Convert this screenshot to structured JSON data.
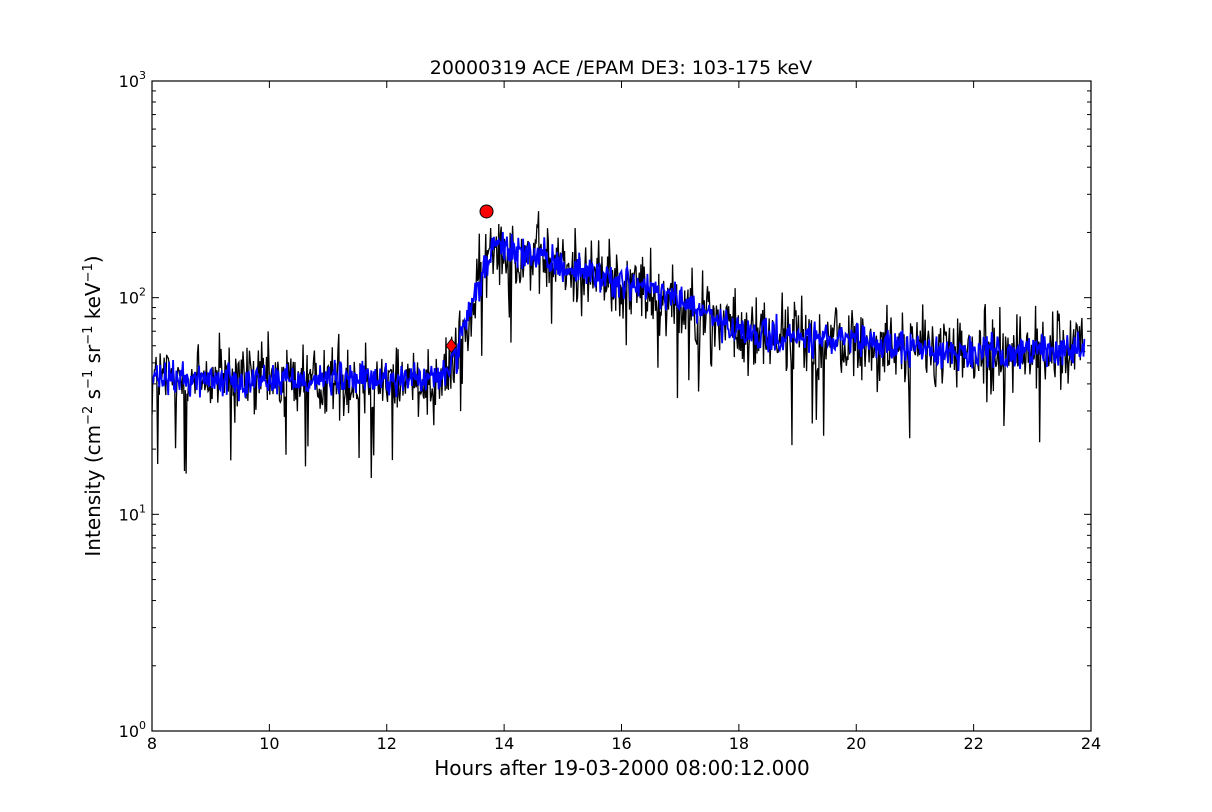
{
  "chart_data": {
    "type": "line",
    "title": "20000319 ACE /EPAM DE3: 103-175 keV",
    "xlabel": "Hours after 19-03-2000 08:00:12.000",
    "ylabel": {
      "text": "Intensity (cm",
      "parts": [
        "Intensity (cm",
        "−2",
        " s",
        "−1",
        " sr",
        "−1",
        " keV",
        "−1",
        ")"
      ]
    },
    "xlim": [
      8,
      24
    ],
    "ylim": [
      1,
      1000
    ],
    "yscale": "log",
    "x_ticks": [
      8,
      10,
      12,
      14,
      16,
      18,
      20,
      22,
      24
    ],
    "x_tick_labels": [
      "8",
      "10",
      "12",
      "14",
      "16",
      "18",
      "20",
      "22",
      "24"
    ],
    "y_tick_exponents": [
      "0",
      "1",
      "2",
      "3"
    ],
    "y_tick_base": "10",
    "grid": false,
    "series": [
      {
        "style": "raw",
        "color": "#000000",
        "x_range": [
          8.0,
          23.9
        ],
        "profile_x": [
          8.0,
          12.9,
          13.2,
          13.5,
          13.8,
          14.2,
          15.0,
          16.0,
          17.0,
          18.0,
          20.0,
          22.0,
          23.9
        ],
        "profile_y": [
          42,
          42,
          55,
          100,
          170,
          165,
          140,
          118,
          98,
          68,
          62,
          55,
          58
        ],
        "noise_level": 0.28
      },
      {
        "style": "smoothed",
        "color": "#0000ff",
        "x_range": [
          8.0,
          23.9
        ],
        "profile_x": [
          8.0,
          12.9,
          13.2,
          13.5,
          13.8,
          14.2,
          15.0,
          16.0,
          17.0,
          18.0,
          20.0,
          22.0,
          23.9
        ],
        "profile_y": [
          42,
          42,
          55,
          100,
          170,
          165,
          140,
          118,
          98,
          68,
          62,
          55,
          58
        ],
        "noise_level": 0.12
      }
    ],
    "markers": [
      {
        "shape": "diamond",
        "color": "#ff0000",
        "x": 13.1,
        "y": 60
      },
      {
        "shape": "circle",
        "color": "#ff0000",
        "x": 13.7,
        "y": 250
      }
    ]
  }
}
